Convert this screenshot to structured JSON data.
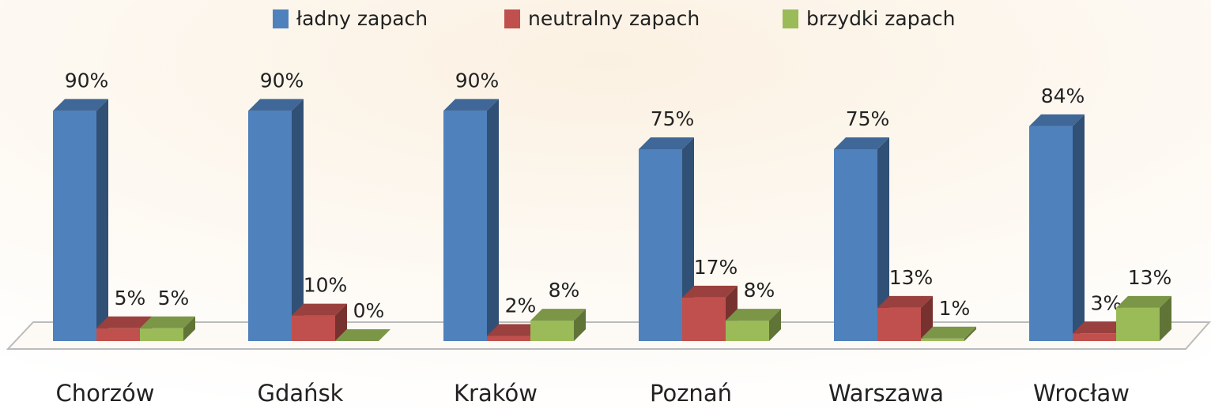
{
  "chart_data": {
    "type": "bar3d",
    "categories": [
      "Chorzów",
      "Gdańsk",
      "Kraków",
      "Poznań",
      "Warszawa",
      "Wrocław"
    ],
    "series": [
      {
        "name": "ładny zapach",
        "color": "#4f81bd",
        "values": [
          90,
          90,
          90,
          75,
          75,
          84
        ],
        "value_labels": [
          "90%",
          "90%",
          "90%",
          "75%",
          "75%",
          "84%"
        ]
      },
      {
        "name": "neutralny zapach",
        "color": "#c0504d",
        "values": [
          5,
          10,
          2,
          17,
          13,
          3
        ],
        "value_labels": [
          "5%",
          "10%",
          "2%",
          "17%",
          "13%",
          "3%"
        ]
      },
      {
        "name": "brzydki zapach",
        "color": "#9bbb59",
        "values": [
          5,
          0,
          8,
          8,
          1,
          13
        ],
        "value_labels": [
          "5%",
          "0%",
          "8%",
          "8%",
          "1%",
          "13%"
        ]
      }
    ],
    "legend": "top"
  }
}
